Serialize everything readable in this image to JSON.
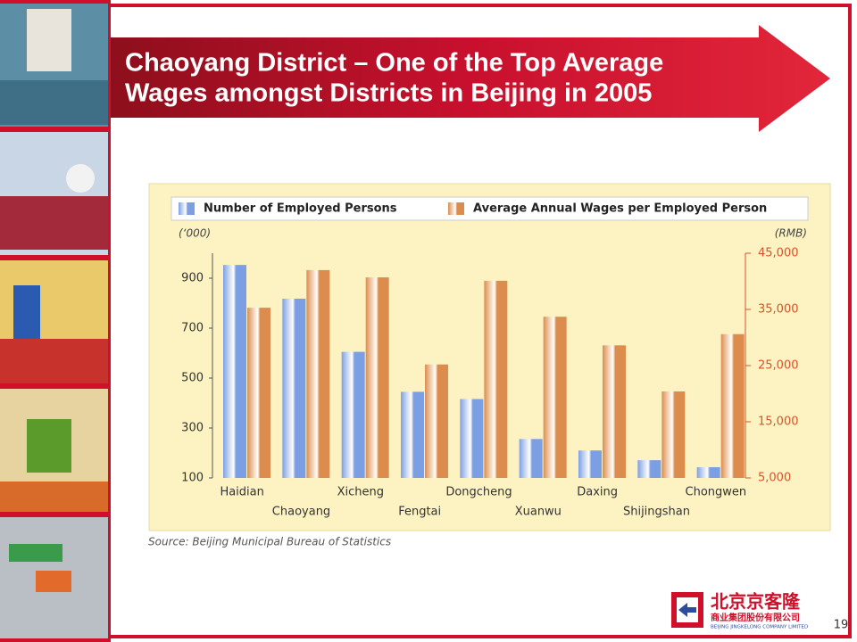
{
  "header": {
    "title_lines": [
      "Chaoyang District – One of the Top Average",
      "Wages amongst Districts in Beijing in 2005"
    ]
  },
  "chart_data": {
    "type": "bar",
    "categories": [
      "Haidian",
      "Chaoyang",
      "Xicheng",
      "Fengtai",
      "Dongcheng",
      "Xuanwu",
      "Daxing",
      "Shijingshan",
      "Chongwen"
    ],
    "series": [
      {
        "name": "Number of Employed Persons",
        "color": "#7c9fe4",
        "values": [
          953,
          818,
          605,
          445,
          416,
          256,
          210,
          171,
          143
        ]
      },
      {
        "name": "Average Annual Wages per Employed Person",
        "color": "#dc8c4c",
        "axis": "y2",
        "values": [
          35300,
          42000,
          40700,
          25200,
          40100,
          33700,
          28600,
          20400,
          30600
        ]
      }
    ],
    "ylabel": "(‘000)",
    "y2label": "(RMB)",
    "ylim": [
      100,
      1000
    ],
    "yticks": [
      100,
      300,
      500,
      700,
      900
    ],
    "y2lim": [
      5000,
      45000
    ],
    "y2ticks": [
      {
        "value": 5000,
        "label": "5,000"
      },
      {
        "value": 15000,
        "label": "15,000"
      },
      {
        "value": 25000,
        "label": "25,000"
      },
      {
        "value": 35000,
        "label": "35,000"
      },
      {
        "value": 45000,
        "label": "45,000"
      }
    ],
    "y2color": "#d9532a"
  },
  "source": "Source: Beijing Municipal Bureau of Statistics",
  "page_number": "19",
  "logo": {
    "name": "北京京客隆",
    "subtitle": "商业集团股份有限公司",
    "english": "BEIJING JINGKELONG COMPANY LIMITED"
  }
}
